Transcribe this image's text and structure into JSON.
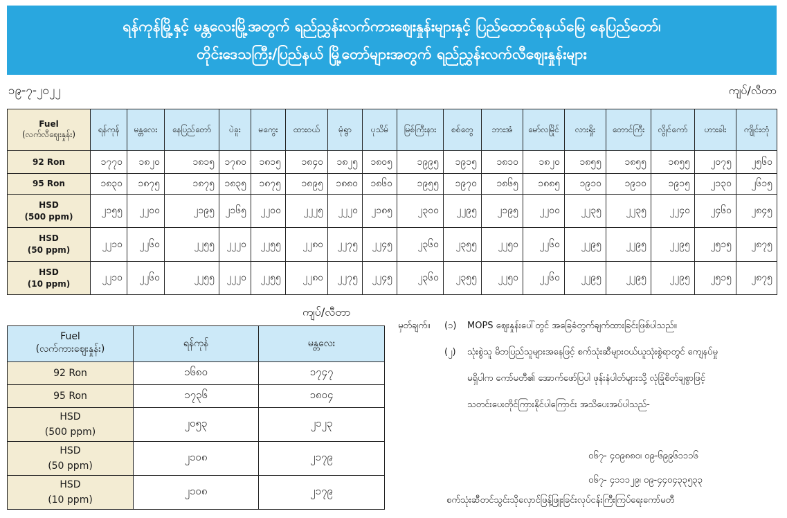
{
  "banner": {
    "line1": "ရန်ကုန်မြို့နှင့် မန္တလေးမြို့အတွက် ရည်ညွှန်းလက်ကားဈေးနှုန်းများနှင့် ပြည်ထောင်စုနယ်မြေ နေပြည်တော်၊",
    "line2": "တိုင်းဒေသကြီး/ပြည်နယ် မြို့တော်များအတွက် ရည်ညွှန်းလက်လီဈေးနှုန်းများ"
  },
  "date": "၁၉-၇-၂၀၂၂",
  "unit": "ကျပ်/လီတာ",
  "retail_table": {
    "fuel_header": "Fuel",
    "fuel_subheader": "(လက်လီဈေးနှုန်း)",
    "cities": [
      "ရန်ကုန်",
      "မန္တလေး",
      "နေပြည်တော်",
      "ပဲခူး",
      "မကွေး",
      "ထားဝယ်",
      "မုံရွာ",
      "ပုသိမ်",
      "မြစ်ကြီးနား",
      "စစ်တွေ",
      "ဘားအံ",
      "မော်လမြိုင်",
      "လားရှိုး",
      "တောင်ကြီး",
      "လွိုင်ကော်",
      "ဟားခါး",
      "ကျိုင်းတုံ"
    ],
    "rows": [
      {
        "fuel": "92 Ron",
        "sub": "",
        "values": [
          "၁၇၇၀",
          "၁၈၂၀",
          "၁၈၁၅",
          "၁၇၈၀",
          "၁၈၁၅",
          "၁၈၄၀",
          "၁၈၂၅",
          "၁၈၀၅",
          "၁၉၉၅",
          "၁၉၁၅",
          "၁၈၁၀",
          "၁၈၂၀",
          "၁၈၅၅",
          "၁၈၅၅",
          "၁၈၅၅",
          "၂၀၇၅",
          "၂၅၆၀"
        ]
      },
      {
        "fuel": "95 Ron",
        "sub": "",
        "values": [
          "၁၈၃၀",
          "၁၈၇၅",
          "၁၈၇၅",
          "၁၈၃၅",
          "၁၈၇၅",
          "၁၈၉၅",
          "၁၈၈၀",
          "၁၈၆၀",
          "၁၉၅၅",
          "၁၉၇၀",
          "၁၈၆၅",
          "၁၈၈၅",
          "၁၉၁၀",
          "၁၉၁၀",
          "၁၉၁၅",
          "၂၁၃၀",
          "၂၆၁၅"
        ]
      },
      {
        "fuel": "HSD",
        "sub": "(500 ppm)",
        "values": [
          "၂၁၅၅",
          "၂၂၀၀",
          "၂၁၉၅",
          "၂၁၆၅",
          "၂၂၀၀",
          "၂၂၂၅",
          "၂၂၂၀",
          "၂၁၈၅",
          "၂၃၀၀",
          "၂၂၉၅",
          "၂၁၉၅",
          "၂၂၀၀",
          "၂၂၃၅",
          "၂၂၃၅",
          "၂၂၄၀",
          "၂၄၆၀",
          "၂၈၄၅"
        ]
      },
      {
        "fuel": "HSD",
        "sub": "(50 ppm)",
        "values": [
          "၂၂၁၀",
          "၂၂၆၀",
          "၂၂၅၅",
          "၂၂၂၀",
          "၂၂၅၅",
          "၂၂၈၀",
          "၂၂၇၅",
          "၂၂၄၅",
          "၂၃၆၀",
          "၂၃၅၅",
          "၂၂၅၀",
          "၂၂၆၀",
          "၂၂၉၅",
          "၂၂၉၅",
          "၂၂၉၅",
          "၂၅၁၅",
          "၂၈၇၅"
        ]
      },
      {
        "fuel": "HSD",
        "sub": "(10 ppm)",
        "values": [
          "၂၂၁၀",
          "၂၂၆၀",
          "၂၂၅၅",
          "၂၂၂၀",
          "၂၂၅၅",
          "၂၂၈၀",
          "၂၂၇၅",
          "၂၂၄၅",
          "၂၃၆၀",
          "၂၃၅၅",
          "၂၂၅၀",
          "၂၂၆၀",
          "၂၂၉၅",
          "၂၂၉၅",
          "၂၂၉၅",
          "၂၅၁၅",
          "၂၈၇၅"
        ]
      }
    ]
  },
  "wholesale_table": {
    "fuel_header": "Fuel",
    "fuel_subheader": "(လက်ကားဈေးနှုန်း)",
    "cities": [
      "ရန်ကုန်",
      "မန္တလေး"
    ],
    "rows": [
      {
        "fuel": "92 Ron",
        "sub": "",
        "values": [
          "၁၆၈၀",
          "၁၇၄၇"
        ]
      },
      {
        "fuel": "95 Ron",
        "sub": "",
        "values": [
          "၁၇၃၆",
          "၁၈၀၄"
        ]
      },
      {
        "fuel": "HSD",
        "sub": "(500 ppm)",
        "values": [
          "၂၀၅၃",
          "၂၁၂၃"
        ]
      },
      {
        "fuel": "HSD",
        "sub": "(50 ppm)",
        "values": [
          "၂၁၀၈",
          "၂၁၇၉"
        ]
      },
      {
        "fuel": "HSD",
        "sub": "(10 ppm)",
        "values": [
          "၂၁၀၈",
          "၂၁၇၉"
        ]
      }
    ]
  },
  "notes": {
    "label": "မှတ်ချက်။",
    "n1_num": "(၁)",
    "n1": "MOPS ဈေးနှုန်းပေါ်တွင် အခြေခံတွက်ချက်ထားခြင်းဖြစ်ပါသည်။",
    "n2_num": "(၂)",
    "n2_l1": "သုံးစွဲသူ မိဘပြည်သူများအနေဖြင့် စက်သုံးဆီများဝယ်ယူသုံးစွဲရာတွင် ကျေနပ်မှု",
    "n2_l2": "မရှိပါက  ကော်မတီ၏ အောက်ဖော်ပြပါ ဖုန်းနံပါတ်များသို့ လုံခြုံစိတ်ချစွာဖြင့်",
    "n2_l3": "သတင်းပေးတိုင်ကြားနိုင်ပါကြောင်း အသိပေးအပ်ပါသည်-",
    "phone1": "၀၆၇- ၄၀၉၈၈၀၊ ၀၉-၆၉၉၆၁၁၁၆",
    "phone2": "၀၆၇-  ၄၁၁၁၂၉၊ ၀၉-၄၄၀၄၃၃၅၃၃",
    "footer": "စက်သုံးဆီတင်သွင်းသိုလှောင်ဖြန့်ဖြူးခြင်းလုပ်ငန်းကြီးကြပ်ရေးကော်မတီ"
  },
  "colors": {
    "banner": "#29a7df",
    "header_cell": "#cce9f8",
    "fuel_cell": "#f3ecd3"
  }
}
